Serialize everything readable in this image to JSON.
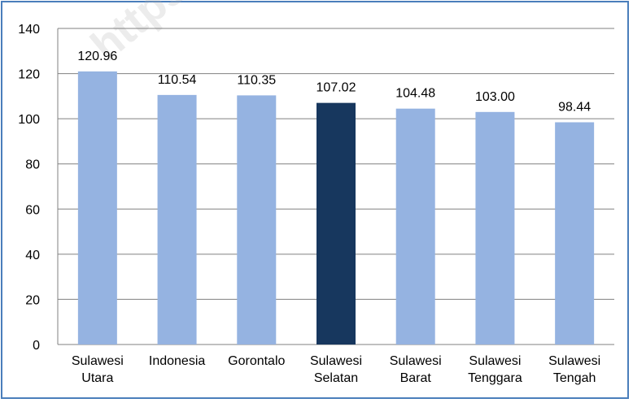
{
  "chart_data": {
    "type": "bar",
    "title": "",
    "xlabel": "",
    "ylabel": "",
    "ylim": [
      0,
      140
    ],
    "yticks": [
      0,
      20,
      40,
      60,
      80,
      100,
      120,
      140
    ],
    "grid": true,
    "legend": "none",
    "categories": [
      [
        "Sulawesi",
        "Utara"
      ],
      [
        "Indonesia"
      ],
      [
        "Gorontalo"
      ],
      [
        "Sulawesi",
        "Selatan"
      ],
      [
        "Sulawesi",
        "Barat"
      ],
      [
        "Sulawesi",
        "Tenggara"
      ],
      [
        "Sulawesi",
        "Tengah"
      ]
    ],
    "values": [
      120.96,
      110.54,
      110.35,
      107.02,
      104.48,
      103.0,
      98.44
    ],
    "value_labels": [
      "120.96",
      "110.54",
      "110.35",
      "107.02",
      "104.48",
      "103.00",
      "98.44"
    ],
    "highlight_index": 3,
    "colors": {
      "bar": "#95b3e1",
      "highlight": "#17375e",
      "grid": "#808080",
      "frame": "#4a7ebb"
    }
  },
  "watermark": "https://s"
}
